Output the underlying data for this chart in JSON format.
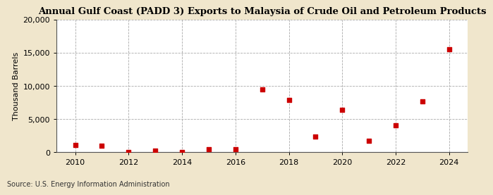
{
  "title": "Annual Gulf Coast (PADD 3) Exports to Malaysia of Crude Oil and Petroleum Products",
  "ylabel": "Thousand Barrels",
  "source": "Source: U.S. Energy Information Administration",
  "figure_bg": "#f0e6cc",
  "plot_bg": "#ffffff",
  "marker_color": "#cc0000",
  "years": [
    2010,
    2011,
    2012,
    2013,
    2014,
    2015,
    2016,
    2017,
    2018,
    2019,
    2020,
    2021,
    2022,
    2023,
    2024
  ],
  "values": [
    1100,
    1000,
    100,
    300,
    80,
    500,
    500,
    9500,
    7900,
    2400,
    6400,
    1800,
    4100,
    7700,
    15500
  ],
  "ylim": [
    0,
    20000
  ],
  "yticks": [
    0,
    5000,
    10000,
    15000,
    20000
  ],
  "xticks": [
    2010,
    2012,
    2014,
    2016,
    2018,
    2020,
    2022,
    2024
  ],
  "grid_color": "#aaaaaa",
  "title_fontsize": 9.5,
  "axis_label_fontsize": 8,
  "tick_fontsize": 8,
  "source_fontsize": 7
}
